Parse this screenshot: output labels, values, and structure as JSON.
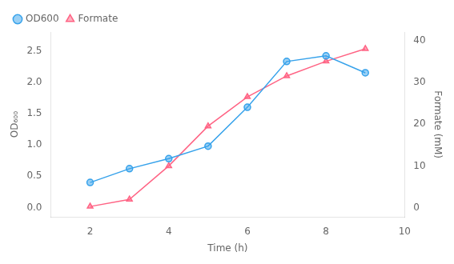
{
  "chart_data": {
    "type": "line",
    "x": [
      2,
      3,
      4,
      5,
      6,
      7,
      8,
      9
    ],
    "xlabel": "Time (h)",
    "ylabel": "OD₆₀₀",
    "y2label": "Formate (mM)",
    "xlim": [
      1,
      10
    ],
    "xticks": [
      2,
      4,
      6,
      8,
      10
    ],
    "ylim": [
      -0.15,
      2.8
    ],
    "yticks": [
      {
        "value": 0,
        "label": "0.0"
      },
      0.5,
      {
        "value": 1,
        "label": "1.0"
      },
      1.5,
      {
        "value": 2,
        "label": "2.0"
      },
      2.5
    ],
    "y2lim": [
      -2.2,
      42
    ],
    "y2ticks": [
      0,
      10,
      20,
      30,
      40
    ],
    "grid": false,
    "legend": "upper left",
    "series": [
      {
        "name": "OD600",
        "marker": "circle",
        "values": [
          0.4,
          0.62,
          0.78,
          0.98,
          1.6,
          2.33,
          2.42,
          2.15
        ]
      },
      {
        "name": "Formate",
        "marker": "triangle",
        "axis": "y2",
        "values": [
          0.3,
          2.0,
          10.0,
          19.5,
          26.5,
          31.5,
          35.0,
          38.0
        ]
      }
    ]
  }
}
